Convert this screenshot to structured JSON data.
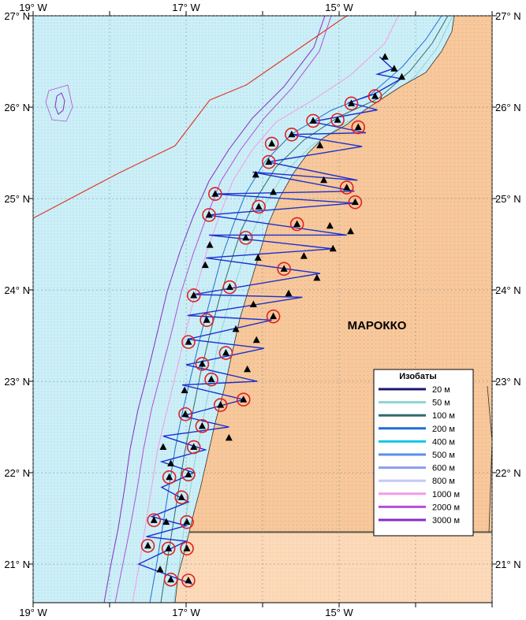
{
  "lon_ticks": [
    "19° W",
    "17° W",
    "15° W"
  ],
  "lat_ticks": [
    "27° N",
    "26° N",
    "25° N",
    "24° N",
    "23° N",
    "22° N",
    "21° N"
  ],
  "country_label": "МАРОККО",
  "legend": {
    "title": "Изобаты",
    "items": [
      {
        "label": "20 м",
        "color": "#1a1a6e"
      },
      {
        "label": "50 м",
        "color": "#8fd3d3"
      },
      {
        "label": "100 м",
        "color": "#2f6b6b"
      },
      {
        "label": "200 м",
        "color": "#1f6fd1"
      },
      {
        "label": "400 м",
        "color": "#10c8e8"
      },
      {
        "label": "500 м",
        "color": "#5a8de8"
      },
      {
        "label": "600 м",
        "color": "#8c9cf0"
      },
      {
        "label": "800 м",
        "color": "#c6c8f4"
      },
      {
        "label": "1000 м",
        "color": "#f39ae8"
      },
      {
        "label": "2000 м",
        "color": "#b44ed8"
      },
      {
        "label": "3000 м",
        "color": "#8a2ac4"
      }
    ]
  },
  "colors": {
    "sea": "#cdeff7",
    "land": "#f7c89b",
    "land_light": "#fcd9b8",
    "track": "#1a2fd0",
    "eez_line": "#e03a2a",
    "station_circle": "#e02020"
  },
  "stations": {
    "all": [
      [
        -14.4,
        26.55
      ],
      [
        -14.28,
        26.42
      ],
      [
        -14.18,
        26.33
      ],
      [
        -14.53,
        26.12
      ],
      [
        -14.84,
        26.04
      ],
      [
        -15.34,
        25.85
      ],
      [
        -15.02,
        25.86
      ],
      [
        -14.75,
        25.78
      ],
      [
        -15.62,
        25.7
      ],
      [
        -15.88,
        25.6
      ],
      [
        -15.25,
        25.58
      ],
      [
        -15.92,
        25.4
      ],
      [
        -16.09,
        25.26
      ],
      [
        -15.2,
        25.2
      ],
      [
        -14.9,
        25.12
      ],
      [
        -15.86,
        25.07
      ],
      [
        -16.62,
        25.05
      ],
      [
        -14.79,
        24.96
      ],
      [
        -16.05,
        24.91
      ],
      [
        -16.7,
        24.82
      ],
      [
        -15.55,
        24.72
      ],
      [
        -15.12,
        24.7
      ],
      [
        -14.85,
        24.64
      ],
      [
        -16.22,
        24.57
      ],
      [
        -16.69,
        24.49
      ],
      [
        -15.08,
        24.45
      ],
      [
        -15.46,
        24.37
      ],
      [
        -16.06,
        24.35
      ],
      [
        -16.75,
        24.27
      ],
      [
        -15.72,
        24.23
      ],
      [
        -15.29,
        24.13
      ],
      [
        -16.43,
        24.03
      ],
      [
        -16.9,
        23.94
      ],
      [
        -15.66,
        23.96
      ],
      [
        -16.12,
        23.84
      ],
      [
        -15.86,
        23.71
      ],
      [
        -16.73,
        23.67
      ],
      [
        -16.35,
        23.57
      ],
      [
        -16.08,
        23.45
      ],
      [
        -16.97,
        23.43
      ],
      [
        -16.48,
        23.31
      ],
      [
        -16.79,
        23.19
      ],
      [
        -16.2,
        23.13
      ],
      [
        -16.67,
        23.02
      ],
      [
        -17.02,
        22.9
      ],
      [
        -16.25,
        22.8
      ],
      [
        -16.55,
        22.74
      ],
      [
        -17.01,
        22.64
      ],
      [
        -16.79,
        22.51
      ],
      [
        -16.44,
        22.38
      ],
      [
        -17.3,
        22.28
      ],
      [
        -16.9,
        22.28
      ],
      [
        -17.2,
        22.1
      ],
      [
        -16.97,
        21.98
      ],
      [
        -17.22,
        21.95
      ],
      [
        -17.06,
        21.73
      ],
      [
        -17.42,
        21.48
      ],
      [
        -17.26,
        21.46
      ],
      [
        -16.99,
        21.46
      ],
      [
        -17.5,
        21.2
      ],
      [
        -17.23,
        21.17
      ],
      [
        -16.99,
        21.17
      ],
      [
        -17.34,
        20.94
      ],
      [
        -17.2,
        20.83
      ],
      [
        -16.97,
        20.82
      ]
    ],
    "circled": [
      [
        -14.53,
        26.12
      ],
      [
        -14.84,
        26.04
      ],
      [
        -15.34,
        25.85
      ],
      [
        -15.02,
        25.86
      ],
      [
        -14.75,
        25.78
      ],
      [
        -15.62,
        25.7
      ],
      [
        -15.88,
        25.6
      ],
      [
        -15.92,
        25.4
      ],
      [
        -14.9,
        25.12
      ],
      [
        -16.62,
        25.05
      ],
      [
        -14.79,
        24.96
      ],
      [
        -16.05,
        24.91
      ],
      [
        -16.7,
        24.82
      ],
      [
        -15.55,
        24.72
      ],
      [
        -16.22,
        24.57
      ],
      [
        -15.72,
        24.23
      ],
      [
        -16.43,
        24.03
      ],
      [
        -16.9,
        23.94
      ],
      [
        -15.86,
        23.71
      ],
      [
        -16.73,
        23.67
      ],
      [
        -16.48,
        23.31
      ],
      [
        -16.97,
        23.43
      ],
      [
        -16.79,
        23.19
      ],
      [
        -16.67,
        23.02
      ],
      [
        -16.25,
        22.8
      ],
      [
        -16.55,
        22.74
      ],
      [
        -17.01,
        22.64
      ],
      [
        -16.79,
        22.51
      ],
      [
        -16.9,
        22.28
      ],
      [
        -17.06,
        21.73
      ],
      [
        -17.22,
        21.95
      ],
      [
        -16.97,
        21.98
      ],
      [
        -17.42,
        21.48
      ],
      [
        -16.99,
        21.46
      ],
      [
        -17.5,
        21.2
      ],
      [
        -17.23,
        21.17
      ],
      [
        -16.99,
        21.17
      ],
      [
        -17.2,
        20.83
      ],
      [
        -16.97,
        20.82
      ]
    ]
  },
  "track": [
    [
      -14.47,
      26.55
    ],
    [
      -14.3,
      26.42
    ],
    [
      -14.3,
      26.42
    ],
    [
      -14.5,
      26.36
    ],
    [
      -14.19,
      26.31
    ],
    [
      -14.55,
      26.14
    ],
    [
      -14.87,
      26.05
    ],
    [
      -14.5,
      25.97
    ],
    [
      -15.36,
      25.84
    ],
    [
      -14.65,
      25.72
    ],
    [
      -15.64,
      25.7
    ],
    [
      -14.7,
      25.57
    ],
    [
      -15.93,
      25.4
    ],
    [
      -14.76,
      25.2
    ],
    [
      -16.13,
      25.29
    ],
    [
      -14.8,
      25.08
    ],
    [
      -16.63,
      25.05
    ],
    [
      -14.8,
      24.95
    ],
    [
      -16.72,
      24.82
    ],
    [
      -14.9,
      24.6
    ],
    [
      -16.7,
      24.6
    ],
    [
      -15.08,
      24.45
    ],
    [
      -16.74,
      24.35
    ],
    [
      -15.25,
      24.18
    ],
    [
      -16.9,
      23.95
    ],
    [
      -15.48,
      23.92
    ],
    [
      -16.98,
      23.72
    ],
    [
      -15.88,
      23.67
    ],
    [
      -16.98,
      23.46
    ],
    [
      -15.98,
      23.36
    ],
    [
      -17.0,
      23.18
    ],
    [
      -16.07,
      23.0
    ],
    [
      -17.05,
      22.96
    ],
    [
      -16.25,
      22.8
    ],
    [
      -17.05,
      22.62
    ],
    [
      -16.44,
      22.5
    ],
    [
      -17.3,
      22.4
    ],
    [
      -16.75,
      22.25
    ],
    [
      -17.32,
      22.12
    ],
    [
      -16.9,
      22.0
    ],
    [
      -17.32,
      21.84
    ],
    [
      -16.97,
      21.68
    ],
    [
      -17.45,
      21.52
    ],
    [
      -17.0,
      21.42
    ],
    [
      -17.52,
      21.3
    ],
    [
      -17.0,
      21.25
    ],
    [
      -17.62,
      21.0
    ],
    [
      -16.92,
      20.78
    ]
  ]
}
